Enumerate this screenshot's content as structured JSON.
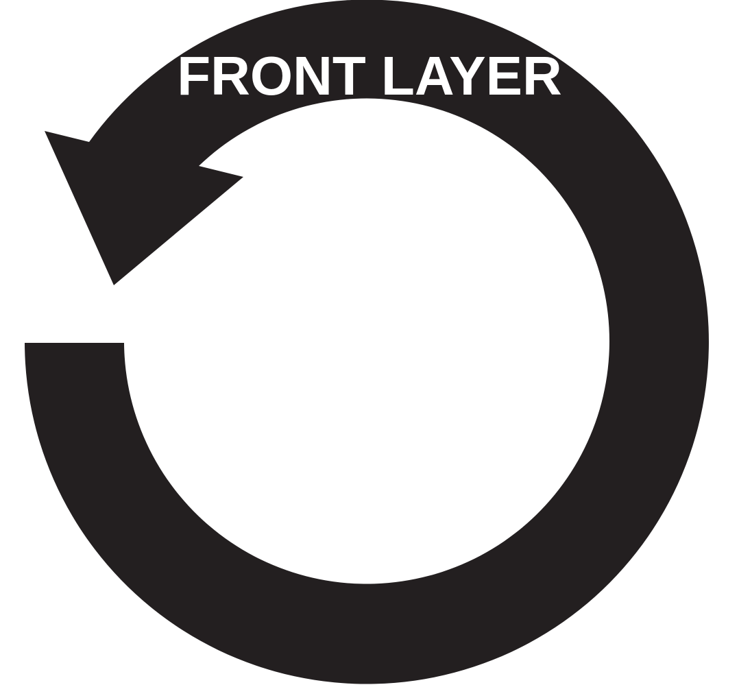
{
  "symbol": {
    "label": "FRONT LAYER",
    "icon": "rotate-counterclockwise-arrow-icon",
    "colors": {
      "arrow": "#231f20",
      "label": "#ffffff",
      "background": "#ffffff"
    }
  }
}
